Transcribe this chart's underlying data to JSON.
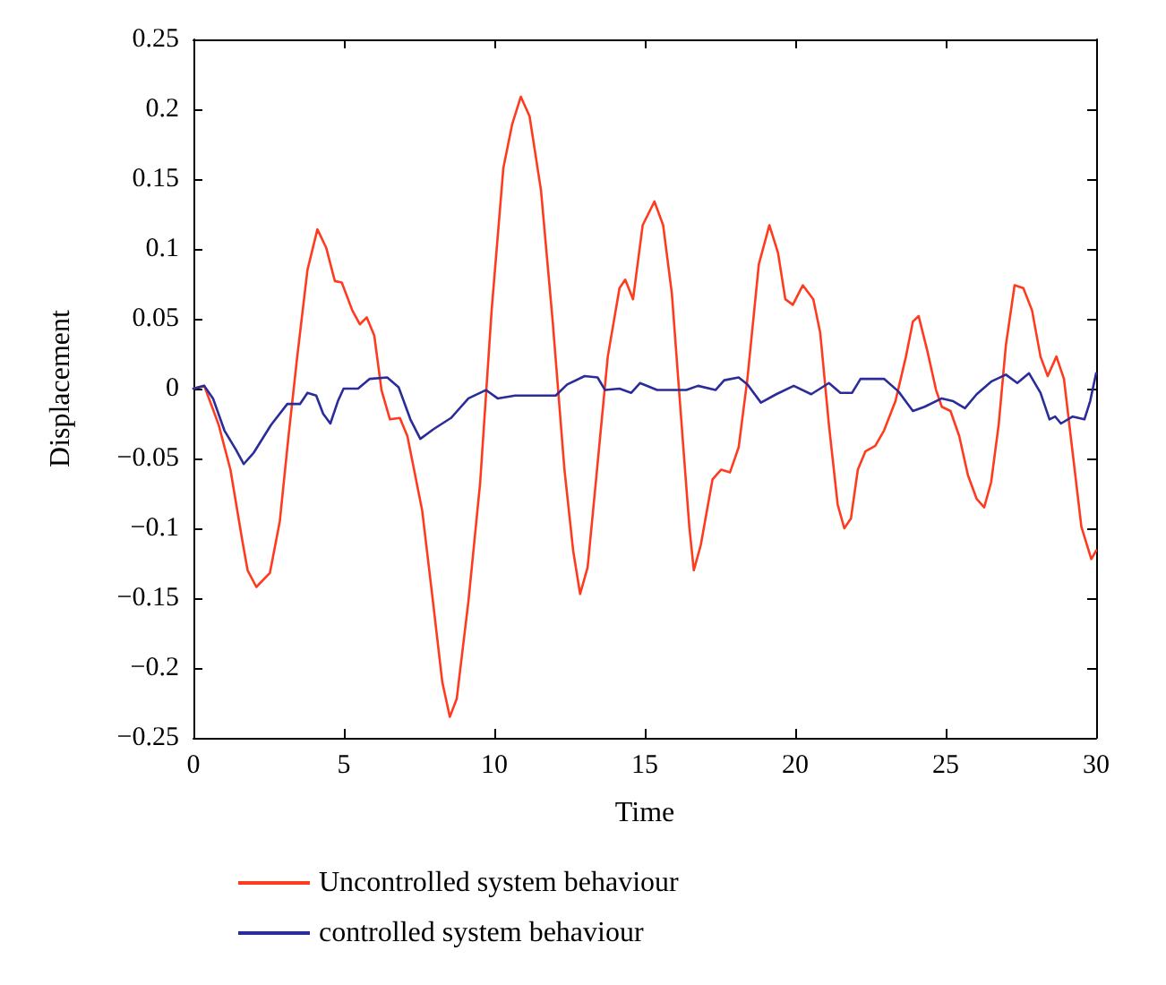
{
  "chart_data": {
    "type": "line",
    "xlabel": "Time",
    "ylabel": "Displacement",
    "xlim": [
      0,
      30
    ],
    "xticks": [
      0,
      5,
      10,
      15,
      20,
      25,
      30
    ],
    "ylim": [
      -0.25,
      0.25
    ],
    "yticks": [
      {
        "value": -0.25,
        "label": "−0.25"
      },
      {
        "value": -0.2,
        "label": "−0.2"
      },
      {
        "value": -0.15,
        "label": "−0.15"
      },
      {
        "value": -0.1,
        "label": "−0.1"
      },
      {
        "value": -0.05,
        "label": "−0.05"
      },
      0,
      0.05,
      0.1,
      0.15,
      0.2,
      0.25
    ],
    "grid": false,
    "legend": "bottom left",
    "marker": "none",
    "line_style": "solid",
    "series": [
      {
        "name": "Uncontrolled system behaviour",
        "color": "#ff3b1f",
        "x": [
          0,
          0.36,
          0.84,
          1.23,
          1.61,
          1.8,
          2.09,
          2.54,
          2.87,
          3.16,
          3.45,
          3.79,
          4.12,
          4.41,
          4.7,
          4.93,
          5.28,
          5.53,
          5.76,
          6.01,
          6.25,
          6.53,
          6.86,
          7.11,
          7.6,
          7.98,
          8.27,
          8.52,
          8.75,
          9.14,
          9.53,
          9.91,
          10.3,
          10.59,
          10.88,
          11.17,
          11.55,
          11.94,
          12.33,
          12.62,
          12.85,
          13.1,
          13.39,
          13.77,
          14.16,
          14.35,
          14.61,
          14.93,
          15.32,
          15.61,
          15.9,
          16.18,
          16.48,
          16.63,
          16.86,
          17.25,
          17.54,
          17.83,
          18.12,
          18.41,
          18.79,
          19.14,
          19.43,
          19.67,
          19.92,
          20.25,
          20.6,
          20.83,
          21.12,
          21.41,
          21.63,
          21.85,
          22.08,
          22.33,
          22.66,
          22.95,
          23.33,
          23.68,
          23.91,
          24.1,
          24.39,
          24.68,
          24.87,
          25.16,
          25.45,
          25.74,
          26.03,
          26.28,
          26.51,
          26.76,
          27,
          27.29,
          27.58,
          27.87,
          28.15,
          28.39,
          28.68,
          28.93,
          29.22,
          29.51,
          29.84,
          30
        ],
        "values": [
          0,
          0.002,
          -0.026,
          -0.058,
          -0.107,
          -0.13,
          -0.142,
          -0.132,
          -0.095,
          -0.034,
          0.023,
          0.085,
          0.114,
          0.101,
          0.077,
          0.076,
          0.056,
          0.046,
          0.051,
          0.038,
          -0.001,
          -0.022,
          -0.021,
          -0.034,
          -0.087,
          -0.156,
          -0.21,
          -0.235,
          -0.222,
          -0.152,
          -0.067,
          0.056,
          0.158,
          0.189,
          0.209,
          0.195,
          0.142,
          0.048,
          -0.058,
          -0.116,
          -0.147,
          -0.128,
          -0.063,
          0.023,
          0.072,
          0.078,
          0.064,
          0.117,
          0.134,
          0.117,
          0.068,
          -0.013,
          -0.099,
          -0.13,
          -0.112,
          -0.065,
          -0.058,
          -0.06,
          -0.042,
          0.007,
          0.089,
          0.117,
          0.097,
          0.064,
          0.06,
          0.074,
          0.064,
          0.04,
          -0.026,
          -0.083,
          -0.1,
          -0.093,
          -0.058,
          -0.045,
          -0.041,
          -0.03,
          -0.009,
          0.023,
          0.048,
          0.052,
          0.027,
          -0.001,
          -0.013,
          -0.016,
          -0.034,
          -0.062,
          -0.079,
          -0.085,
          -0.067,
          -0.026,
          0.031,
          0.074,
          0.072,
          0.056,
          0.023,
          0.009,
          0.023,
          0.007,
          -0.046,
          -0.099,
          -0.122,
          -0.116
        ]
      },
      {
        "name": "controlled system behaviour",
        "color": "#2b2b9a",
        "x": [
          0,
          0.36,
          0.65,
          1.03,
          1.42,
          1.67,
          2,
          2.58,
          3.12,
          3.54,
          3.79,
          4.08,
          4.31,
          4.55,
          4.8,
          4.99,
          5.47,
          5.86,
          6.44,
          6.82,
          7.21,
          7.54,
          7.98,
          8.56,
          9.14,
          9.72,
          10.11,
          10.69,
          12.04,
          12.42,
          13,
          13.43,
          13.68,
          14.16,
          14.55,
          14.84,
          15.41,
          16.38,
          16.77,
          17.35,
          17.64,
          18.12,
          18.41,
          18.86,
          19.37,
          19.95,
          20.53,
          21.12,
          21.5,
          21.89,
          22.17,
          22.95,
          23.43,
          23.91,
          24.3,
          24.87,
          25.25,
          25.64,
          26.03,
          26.51,
          27,
          27.38,
          27.77,
          28.15,
          28.45,
          28.64,
          28.83,
          29.22,
          29.61,
          29.8,
          30
        ],
        "values": [
          0,
          0.002,
          -0.007,
          -0.03,
          -0.044,
          -0.054,
          -0.046,
          -0.026,
          -0.011,
          -0.011,
          -0.003,
          -0.005,
          -0.018,
          -0.025,
          -0.009,
          0,
          0,
          0.007,
          0.008,
          0.001,
          -0.022,
          -0.036,
          -0.029,
          -0.021,
          -0.007,
          -0.001,
          -0.007,
          -0.005,
          -0.005,
          0.003,
          0.009,
          0.008,
          -0.001,
          0,
          -0.003,
          0.004,
          -0.001,
          -0.001,
          0.002,
          -0.001,
          0.006,
          0.008,
          0.003,
          -0.01,
          -0.004,
          0.002,
          -0.004,
          0.004,
          -0.003,
          -0.003,
          0.007,
          0.007,
          -0.002,
          -0.016,
          -0.013,
          -0.007,
          -0.009,
          -0.014,
          -0.004,
          0.005,
          0.01,
          0.004,
          0.011,
          -0.003,
          -0.022,
          -0.02,
          -0.025,
          -0.02,
          -0.022,
          -0.009,
          0.011
        ]
      }
    ]
  }
}
